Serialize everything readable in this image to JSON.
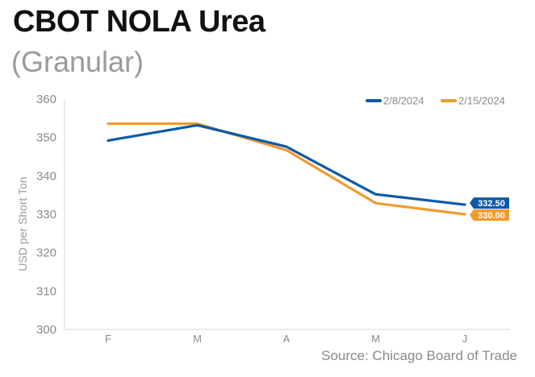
{
  "header": {
    "title": "CBOT NOLA Urea",
    "subtitle": "(Granular)"
  },
  "footer": {
    "source": "Source: Chicago Board of Trade"
  },
  "chart_data": {
    "type": "line",
    "x": [
      "F",
      "M",
      "A",
      "M",
      "J"
    ],
    "ylabel": "USD per Short Ton",
    "ylim": [
      300,
      360
    ],
    "yticks": [
      300,
      310,
      320,
      330,
      340,
      350,
      360
    ],
    "legend_position": "top-right",
    "grid": false,
    "series": [
      {
        "name": "2/8/2024",
        "color": "#0d5aa7",
        "values": [
          349.2,
          353.2,
          347.6,
          335.2,
          332.5
        ],
        "end_label": "332.50"
      },
      {
        "name": "2/15/2024",
        "color": "#f29a2e",
        "values": [
          353.6,
          353.6,
          346.7,
          332.9,
          330.0
        ],
        "end_label": "330.00"
      }
    ]
  }
}
